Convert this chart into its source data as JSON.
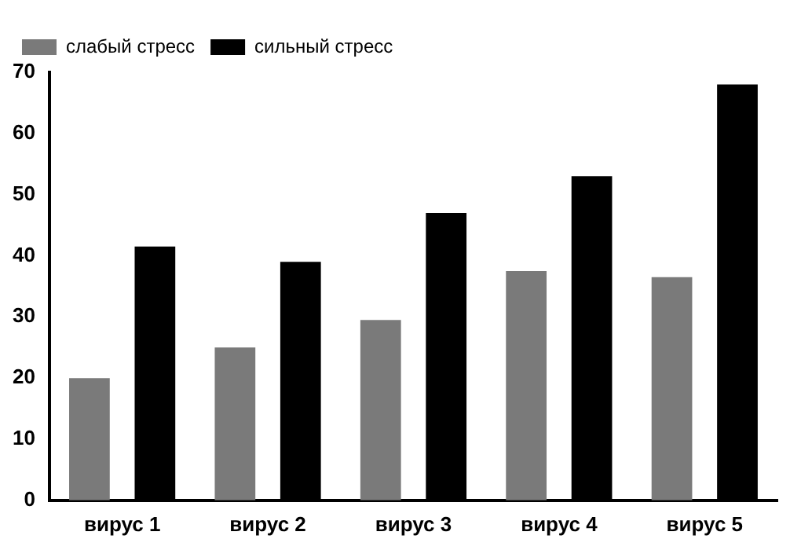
{
  "chart_data": {
    "type": "bar",
    "categories": [
      "вирус 1",
      "вирус 2",
      "вирус 3",
      "вирус 4",
      "вирус 5"
    ],
    "series": [
      {
        "name": "слабый стресс",
        "color": "#7a7a7a",
        "values": [
          20,
          25,
          29.5,
          37.5,
          36.5
        ]
      },
      {
        "name": "сильный стресс",
        "color": "#000000",
        "values": [
          41.5,
          39,
          47,
          53,
          68
        ]
      }
    ],
    "ylim": [
      0,
      70
    ],
    "yticks": [
      0,
      10,
      20,
      30,
      40,
      50,
      60,
      70
    ],
    "grid": false,
    "legend": "top left"
  }
}
